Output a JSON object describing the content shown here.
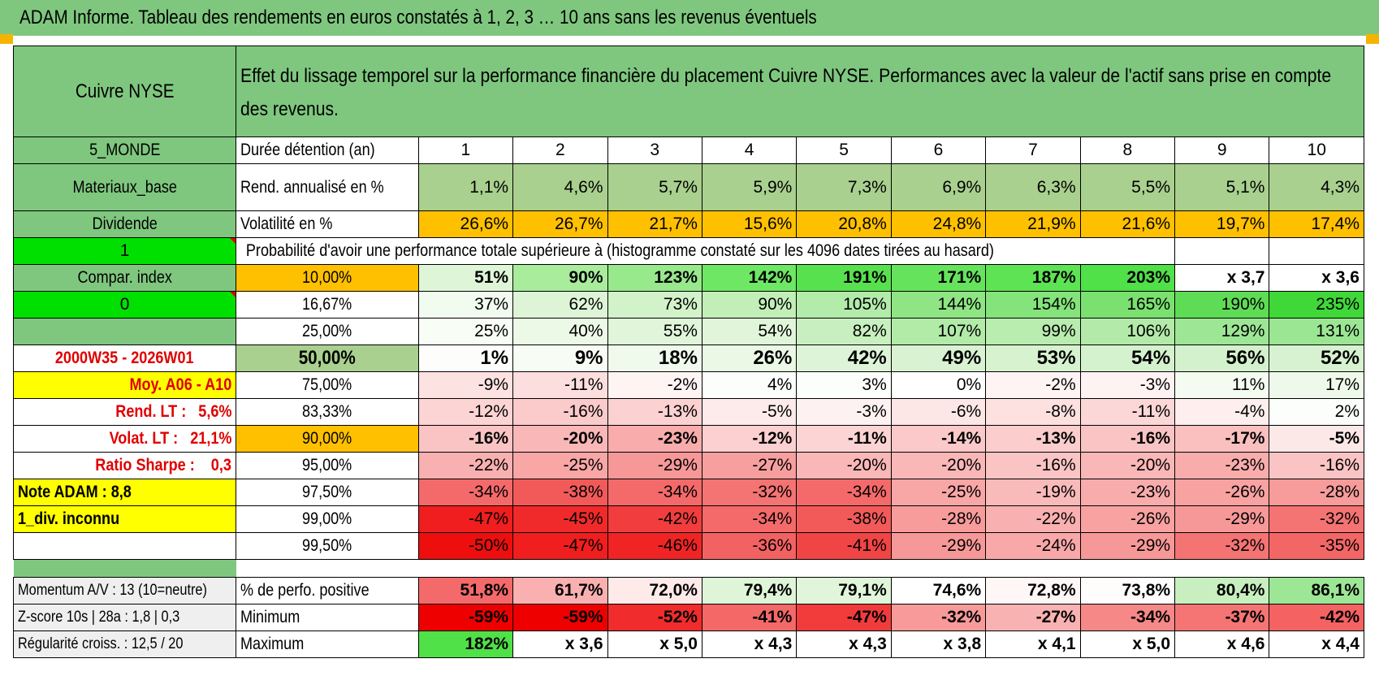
{
  "banner_title": "ADAM Informe. Tableau des rendements en euros constatés à 1, 2, 3 … 10 ans sans les revenus éventuels",
  "asset_name": "Cuivre NYSE",
  "header_text": "Effet du lissage temporel sur la performance financière du placement Cuivre NYSE. Performances avec la valeur de l'actif sans prise en compte des revenus.",
  "years": [
    "1",
    "2",
    "3",
    "4",
    "5",
    "6",
    "7",
    "8",
    "9",
    "10"
  ],
  "side": {
    "region": "5_MONDE",
    "sector": "Materiaux_base",
    "dividend_label": "Dividende",
    "dividend_value": "1",
    "compar_label": "Compar. index",
    "compar_value": "0",
    "period": "2000W35 - 2026W01",
    "moy": "Moy. A06 - A10",
    "rend_lt_label": "Rend. LT :",
    "rend_lt_value": "5,6%",
    "volat_lt_label": "Volat. LT :",
    "volat_lt_value": "21,1%",
    "sharpe_label": "Ratio Sharpe :",
    "sharpe_value": "0,3",
    "note": "Note ADAM : 8,8",
    "div_info": "1_div. inconnu",
    "momentum": "Momentum A/V : 13 (10=neutre)",
    "zscore": "Z-score 10s | 28a : 1,8 | 0,3",
    "regularite": "Régularité croiss. : 12,5 / 20"
  },
  "duree_label": "Durée détention (an)",
  "rend_label": "Rend. annualisé en %",
  "rend_values": [
    "1,1%",
    "4,6%",
    "5,7%",
    "5,9%",
    "7,3%",
    "6,9%",
    "6,3%",
    "5,5%",
    "5,1%",
    "4,3%"
  ],
  "vol_label": "Volatilité en %",
  "vol_values": [
    "26,6%",
    "26,7%",
    "21,7%",
    "15,6%",
    "20,8%",
    "24,8%",
    "21,9%",
    "21,6%",
    "19,7%",
    "17,4%"
  ],
  "prob_title": "Probabilité d'avoir une performance totale supérieure à (histogramme constaté sur les 4096 dates tirées au hasard)",
  "colors": {
    "green_header": "#7fc77f",
    "bright_green": "#00e000",
    "yellow": "#ffff00",
    "orange": "#ffc000",
    "red_text": "#e00000"
  },
  "quantiles": [
    {
      "level": "10,00%",
      "values": [
        "51%",
        "90%",
        "123%",
        "142%",
        "191%",
        "171%",
        "187%",
        "203%",
        "x 3,7",
        "x 3,6"
      ],
      "colors": [
        "#dff5d8",
        "#a8ec9c",
        "#98e88c",
        "#6ee764",
        "#58e14e",
        "#66e35c",
        "#5ee354",
        "#50e048",
        "#ffffff",
        "#ffffff"
      ]
    },
    {
      "level": "16,67%",
      "values": [
        "37%",
        "62%",
        "73%",
        "90%",
        "105%",
        "144%",
        "154%",
        "165%",
        "190%",
        "235%"
      ],
      "colors": [
        "#f2fbef",
        "#ddf5d6",
        "#d2f2ca",
        "#c2eeb8",
        "#b3ebaa",
        "#8fe584",
        "#84e37a",
        "#7ae070",
        "#5fdc56",
        "#3fd838"
      ]
    },
    {
      "level": "25,00%",
      "values": [
        "25%",
        "40%",
        "55%",
        "54%",
        "82%",
        "107%",
        "99%",
        "106%",
        "129%",
        "131%"
      ],
      "colors": [
        "#f8fdf6",
        "#ecf9e7",
        "#e0f5d9",
        "#e1f5da",
        "#c8efbf",
        "#b2eaa8",
        "#b9ecaf",
        "#b3eaa9",
        "#9de695",
        "#9be693"
      ]
    },
    {
      "level": "50,00%",
      "values": [
        "1%",
        "9%",
        "18%",
        "26%",
        "42%",
        "49%",
        "53%",
        "54%",
        "56%",
        "52%"
      ],
      "colors": [
        "#fdfefc",
        "#f7fcf5",
        "#f0faec",
        "#eaf8e5",
        "#def4d8",
        "#d9f3d2",
        "#d6f2cf",
        "#d5f2ce",
        "#d3f1cc",
        "#d7f2d0"
      ]
    },
    {
      "level": "75,00%",
      "values": [
        "-9%",
        "-11%",
        "-2%",
        "4%",
        "3%",
        "0%",
        "-2%",
        "-3%",
        "11%",
        "17%"
      ],
      "colors": [
        "#fde2e2",
        "#fcdede",
        "#fff4f4",
        "#fbfefa",
        "#fcfefb",
        "#ffffff",
        "#fff4f4",
        "#fff2f2",
        "#f4fbf1",
        "#eff9eb"
      ]
    },
    {
      "level": "83,33%",
      "values": [
        "-12%",
        "-16%",
        "-13%",
        "-5%",
        "-3%",
        "-6%",
        "-8%",
        "-11%",
        "-4%",
        "2%"
      ],
      "colors": [
        "#fcd4d4",
        "#fbcaca",
        "#fcd1d1",
        "#fdeaea",
        "#fef1f1",
        "#fde6e6",
        "#fde0e0",
        "#fcd7d7",
        "#feeeee",
        "#fbfefa"
      ]
    },
    {
      "level": "90,00%",
      "values": [
        "-16%",
        "-20%",
        "-23%",
        "-12%",
        "-11%",
        "-14%",
        "-13%",
        "-16%",
        "-17%",
        "-5%"
      ],
      "colors": [
        "#fbc4c4",
        "#fab7b7",
        "#f9acac",
        "#fcd0d0",
        "#fcd4d4",
        "#fbc9c9",
        "#fbcdcd",
        "#fbc4c4",
        "#fac0c0",
        "#fde8e8"
      ]
    },
    {
      "level": "95,00%",
      "values": [
        "-22%",
        "-25%",
        "-29%",
        "-27%",
        "-20%",
        "-20%",
        "-16%",
        "-20%",
        "-23%",
        "-16%"
      ],
      "colors": [
        "#f9b0b0",
        "#f8a6a6",
        "#f79898",
        "#f79f9f",
        "#f9b7b7",
        "#f9b7b7",
        "#fac4c4",
        "#f9b7b7",
        "#f8acac",
        "#fac4c4"
      ]
    },
    {
      "level": "97,50%",
      "values": [
        "-34%",
        "-38%",
        "-34%",
        "-32%",
        "-34%",
        "-25%",
        "-19%",
        "-23%",
        "-26%",
        "-28%"
      ],
      "colors": [
        "#f46a6a",
        "#f25a5a",
        "#f46a6a",
        "#f47373",
        "#f46a6a",
        "#f8a6a6",
        "#f9baba",
        "#f8acac",
        "#f8a2a2",
        "#f79b9b"
      ]
    },
    {
      "level": "99,00%",
      "values": [
        "-47%",
        "-45%",
        "-42%",
        "-34%",
        "-38%",
        "-28%",
        "-22%",
        "-26%",
        "-29%",
        "-32%"
      ],
      "colors": [
        "#f01e1e",
        "#f02a2a",
        "#f13d3d",
        "#f46a6a",
        "#f25a5a",
        "#f79b9b",
        "#f9b0b0",
        "#f8a2a2",
        "#f79898",
        "#f47373"
      ]
    },
    {
      "level": "99,50%",
      "values": [
        "-50%",
        "-47%",
        "-46%",
        "-36%",
        "-41%",
        "-29%",
        "-24%",
        "-29%",
        "-32%",
        "-35%"
      ],
      "colors": [
        "#ee0e0e",
        "#f01e1e",
        "#f02424",
        "#f36262",
        "#f14444",
        "#f79898",
        "#f8a8a8",
        "#f79898",
        "#f47373",
        "#f36666"
      ]
    }
  ],
  "positive_label": "% de perfo. positive",
  "positive_values": [
    "51,8%",
    "61,7%",
    "72,0%",
    "79,4%",
    "79,1%",
    "74,6%",
    "72,8%",
    "73,8%",
    "80,4%",
    "86,1%"
  ],
  "positive_colors": [
    "#f46a6a",
    "#fab0b0",
    "#ffeaea",
    "#dff5d8",
    "#e0f5d9",
    "#ffffff",
    "#fff6f6",
    "#fffcfc",
    "#c8efbf",
    "#9de695"
  ],
  "min_label": "Minimum",
  "min_values": [
    "-59%",
    "-59%",
    "-52%",
    "-41%",
    "-47%",
    "-32%",
    "-27%",
    "-34%",
    "-37%",
    "-42%"
  ],
  "min_colors": [
    "#ee0000",
    "#ee0000",
    "#f12c2c",
    "#f56868",
    "#f23c3c",
    "#f89a9a",
    "#f9b2b2",
    "#f68888",
    "#f57575",
    "#f46262"
  ],
  "max_label": "Maximum",
  "max_values": [
    "182%",
    "x 3,6",
    "x 5,0",
    "x 4,3",
    "x 4,3",
    "x 3,8",
    "x 4,1",
    "x 5,0",
    "x 4,6",
    "x 4,4"
  ],
  "max_colors": [
    "#50e048",
    "#ffffff",
    "#ffffff",
    "#ffffff",
    "#ffffff",
    "#ffffff",
    "#ffffff",
    "#ffffff",
    "#ffffff",
    "#ffffff"
  ]
}
